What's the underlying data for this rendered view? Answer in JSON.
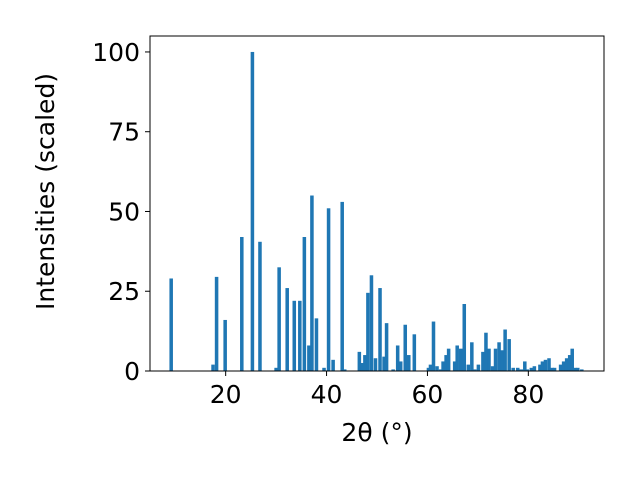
{
  "chart_data": {
    "type": "bar",
    "title": "",
    "xlabel": "2θ (°)",
    "ylabel": "Intensities (scaled)",
    "xlim": [
      5,
      95
    ],
    "ylim": [
      0,
      105
    ],
    "xticks": [
      20,
      40,
      60,
      80
    ],
    "yticks": [
      0,
      25,
      50,
      75,
      100
    ],
    "bar_width_deg": 0.7,
    "grid": false,
    "legend": "none",
    "colors": {
      "bar": "#1f77b4",
      "axis": "#000000"
    },
    "series": [
      {
        "x": [
          9.2,
          17.5,
          18.2,
          19.9,
          23.2,
          25.3,
          26.8,
          30.0,
          30.6,
          32.2,
          33.6,
          34.7,
          35.6,
          36.5,
          37.1,
          38.0,
          39.5,
          40.4,
          41.3,
          43.1,
          43.6,
          46.5,
          47.0,
          47.6,
          48.2,
          48.9,
          49.7,
          50.6,
          51.4,
          51.9,
          53.2,
          54.1,
          54.7,
          55.6,
          56.3,
          57.4,
          60.2,
          60.6,
          61.2,
          61.9,
          62.6,
          63.1,
          63.7,
          64.2,
          65.4,
          65.9,
          66.6,
          67.3,
          68.1,
          68.8,
          69.4,
          70.1,
          71.0,
          71.6,
          72.2,
          72.9,
          73.5,
          74.2,
          74.8,
          75.4,
          76.2,
          77.0,
          77.9,
          78.6,
          79.3,
          79.8,
          80.6,
          81.2,
          82.3,
          82.8,
          83.4,
          84.1,
          84.7,
          85.2,
          86.4,
          87.0,
          87.6,
          88.2,
          88.7,
          89.2,
          89.8,
          90.6
        ],
        "values": [
          29,
          2,
          29.5,
          16,
          42,
          100,
          40.5,
          1,
          32.5,
          26,
          22,
          22,
          42,
          8,
          55,
          16.5,
          1,
          51,
          3.5,
          53,
          0.5,
          6,
          2.5,
          5,
          24.5,
          30,
          4,
          26,
          4.5,
          15,
          0.5,
          8,
          3,
          14.5,
          5,
          11.5,
          1,
          2,
          15.5,
          1.5,
          0.5,
          3,
          5,
          7,
          3,
          8,
          7,
          21,
          2,
          9,
          0.5,
          2,
          6,
          12,
          7,
          1.5,
          7,
          9,
          6.5,
          13,
          10,
          1,
          1,
          0.5,
          3,
          0.5,
          1,
          1.5,
          2,
          3,
          3.5,
          4,
          1,
          1,
          2,
          3,
          4,
          5,
          7,
          1,
          1,
          0.5
        ]
      }
    ]
  }
}
